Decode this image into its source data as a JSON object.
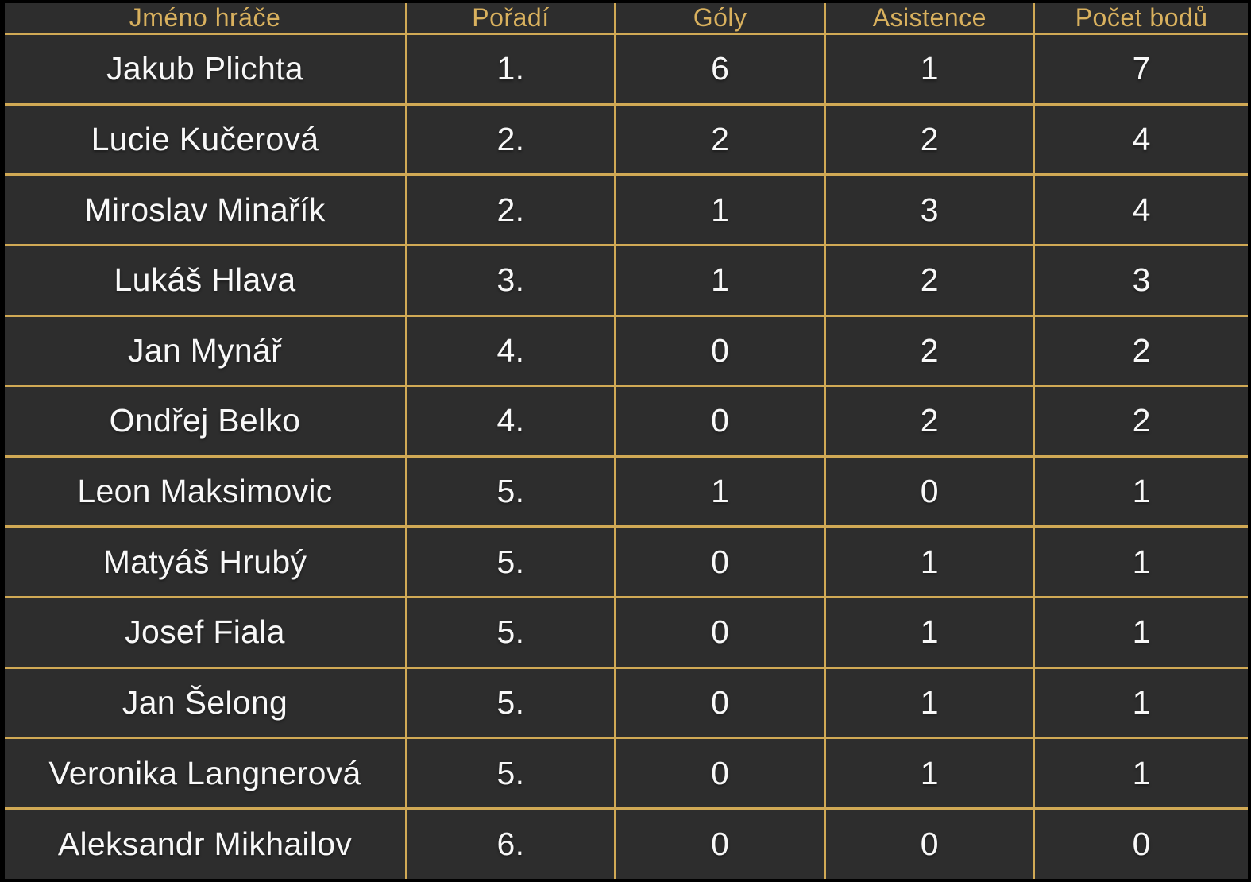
{
  "colors": {
    "background": "#2d2d2d",
    "grid_line": "#d0a955",
    "header_text": "#d9b15e",
    "body_text": "#f8f8f8",
    "outer_frame": "#000000"
  },
  "chart_data": {
    "type": "table",
    "title": "",
    "columns": [
      {
        "key": "name",
        "label": "Jméno hráče"
      },
      {
        "key": "rank",
        "label": "Pořadí"
      },
      {
        "key": "goals",
        "label": "Góly"
      },
      {
        "key": "assists",
        "label": "Asistence"
      },
      {
        "key": "points",
        "label": "Počet bodů"
      }
    ],
    "rows": [
      [
        "Jakub Plichta",
        "1.",
        "6",
        "1",
        "7"
      ],
      [
        "Lucie Kučerová",
        "2.",
        "2",
        "2",
        "4"
      ],
      [
        "Miroslav Minařík",
        "2.",
        "1",
        "3",
        "4"
      ],
      [
        "Lukáš Hlava",
        "3.",
        "1",
        "2",
        "3"
      ],
      [
        "Jan Mynář",
        "4.",
        "0",
        "2",
        "2"
      ],
      [
        "Ondřej Belko",
        "4.",
        "0",
        "2",
        "2"
      ],
      [
        "Leon Maksimovic",
        "5.",
        "1",
        "0",
        "1"
      ],
      [
        "Matyáš Hrubý",
        "5.",
        "0",
        "1",
        "1"
      ],
      [
        "Josef Fiala",
        "5.",
        "0",
        "1",
        "1"
      ],
      [
        "Jan Šelong",
        "5.",
        "0",
        "1",
        "1"
      ],
      [
        "Veronika Langnerová",
        "5.",
        "0",
        "1",
        "1"
      ],
      [
        "Aleksandr Mikhailov",
        "6.",
        "0",
        "0",
        "0"
      ]
    ]
  }
}
